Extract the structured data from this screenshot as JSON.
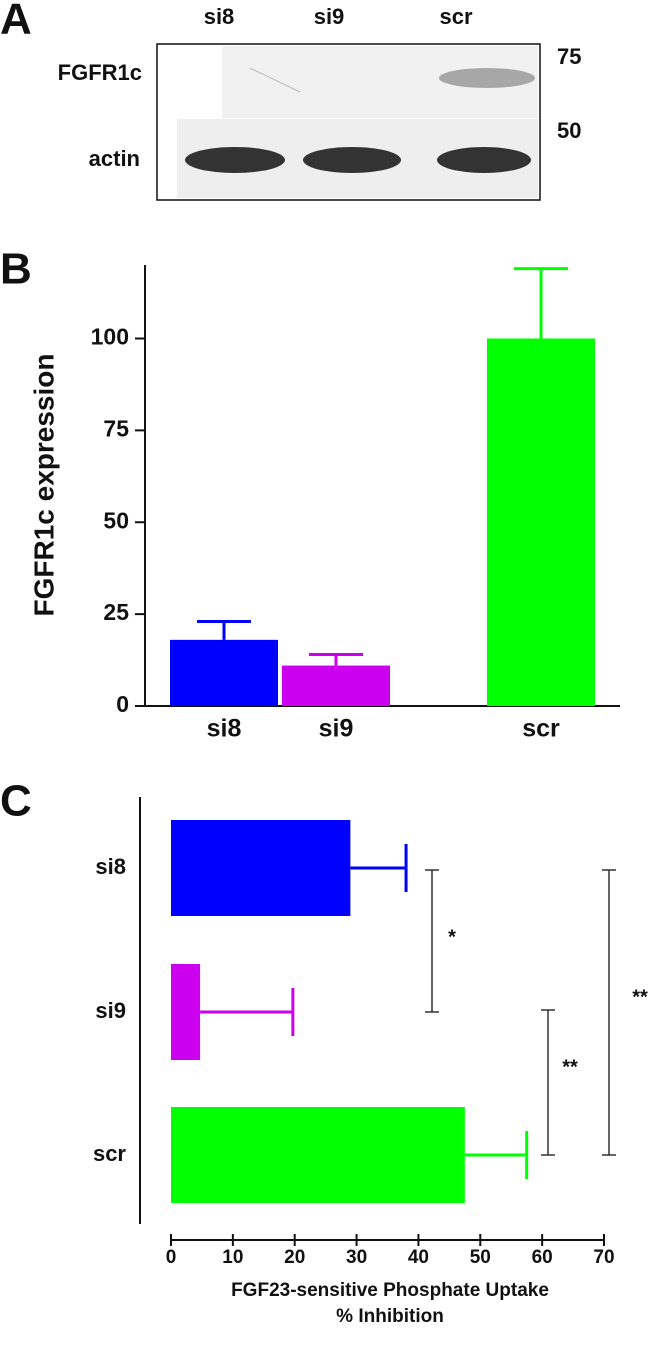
{
  "panel_a": {
    "label": "A",
    "lanes": [
      "si8",
      "si9",
      "scr"
    ],
    "rows": [
      "FGFR1c",
      "actin"
    ],
    "markers": [
      75,
      50
    ]
  },
  "chart_data": [
    {
      "type": "bar",
      "panel_label": "B",
      "ylabel": "FGFR1c expression",
      "categories": [
        "si8",
        "si9",
        "scr"
      ],
      "values": [
        18,
        11,
        100
      ],
      "errors": [
        5,
        3,
        19
      ],
      "colors": [
        "#0000ff",
        "#cc00ee",
        "#00ff00"
      ],
      "ylim": [
        0,
        120
      ],
      "yticks": [
        0,
        25,
        50,
        75,
        100
      ]
    },
    {
      "type": "barh",
      "panel_label": "C",
      "xlabel": [
        "FGF23-sensitive Phosphate Uptake",
        "% Inhibition"
      ],
      "categories": [
        "si8",
        "si9",
        "scr"
      ],
      "values": [
        29,
        4.7,
        47.5
      ],
      "errors": [
        9,
        15,
        10
      ],
      "colors": [
        "#0000ff",
        "#cc00ee",
        "#00ff00"
      ],
      "xlim": [
        0,
        70
      ],
      "xticks": [
        0,
        10,
        20,
        30,
        40,
        50,
        60,
        70
      ],
      "significance": [
        "*",
        "**",
        "**"
      ]
    }
  ]
}
